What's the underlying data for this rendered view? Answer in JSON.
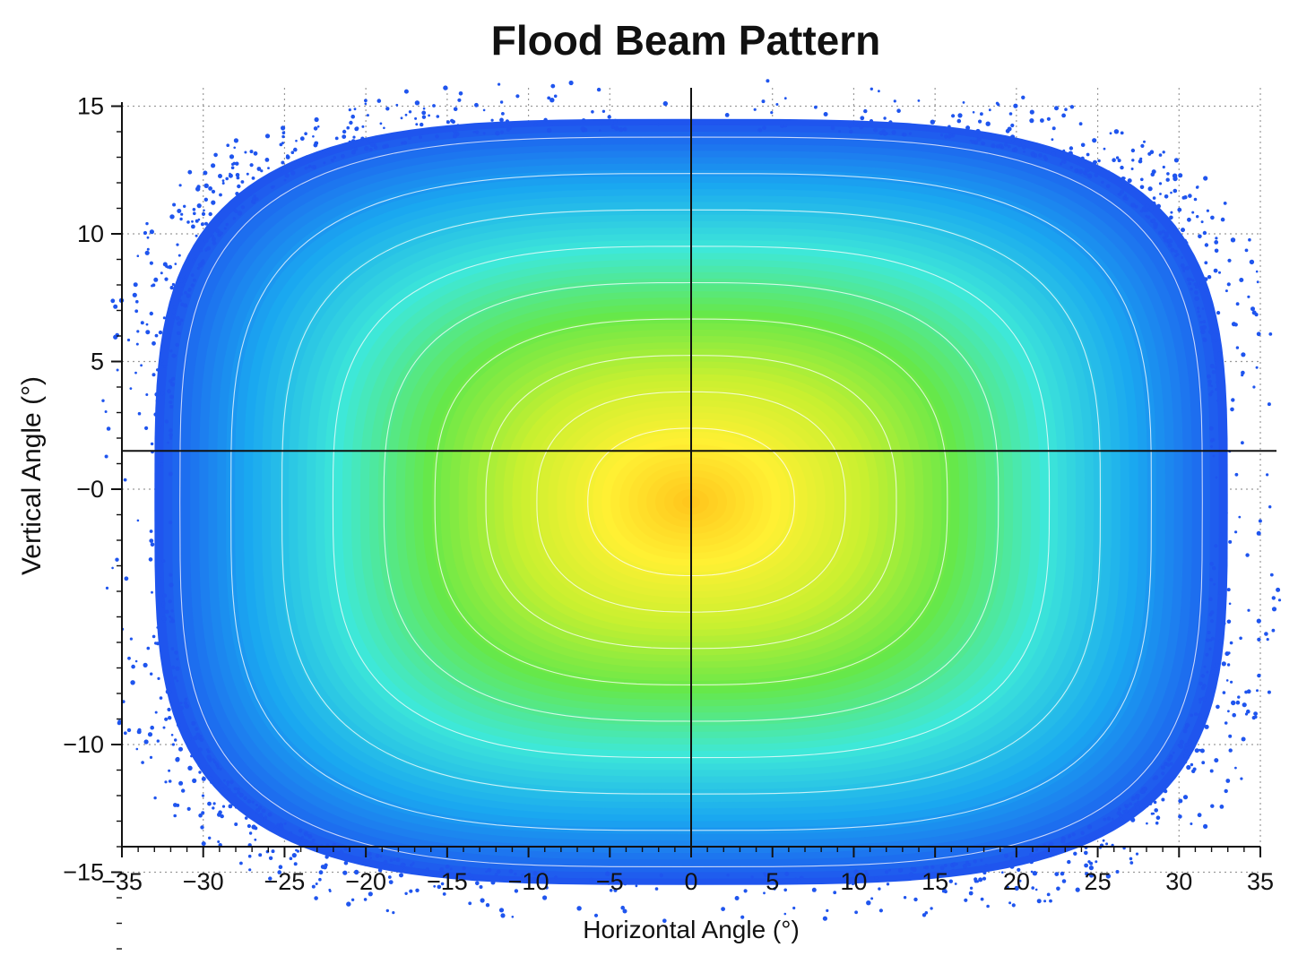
{
  "chart_data": {
    "type": "heatmap",
    "title": "Flood Beam Pattern",
    "xlabel": "Horizontal Angle (°)",
    "ylabel": "Vertical Angle (°)",
    "xlim": [
      -35,
      35
    ],
    "ylim": [
      -18.5,
      15
    ],
    "xticks": [
      -35,
      -30,
      -25,
      -20,
      -15,
      -10,
      -5,
      0,
      5,
      10,
      15,
      20,
      25,
      30,
      35
    ],
    "xtick_labels": [
      "−35",
      "−30",
      "−25",
      "−20",
      "−15",
      "−10",
      "−5",
      "0",
      "5",
      "10",
      "15",
      "20",
      "25",
      "30",
      "35"
    ],
    "yticks": [
      15,
      10,
      5,
      0,
      -10,
      -15
    ],
    "ytick_labels": [
      "15",
      "10",
      "5",
      "−0",
      "−10",
      "−15"
    ],
    "grid": true,
    "crosshair": {
      "x": 0,
      "y": 1.5
    },
    "beam": {
      "center": [
        0,
        -0.5
      ],
      "extent_horizontal": [
        -33,
        33
      ],
      "extent_vertical": [
        -16.5,
        13.5
      ],
      "peak_region": "center, slightly above 0° vertical",
      "colormap": [
        "#ffc21a",
        "#fff033",
        "#c8f030",
        "#66e84a",
        "#3ee8d8",
        "#1aa8f0",
        "#1f55ee"
      ]
    },
    "contour_levels": [
      0.05,
      0.15,
      0.25,
      0.35,
      0.45,
      0.55,
      0.65,
      0.75,
      0.85,
      0.95
    ]
  }
}
